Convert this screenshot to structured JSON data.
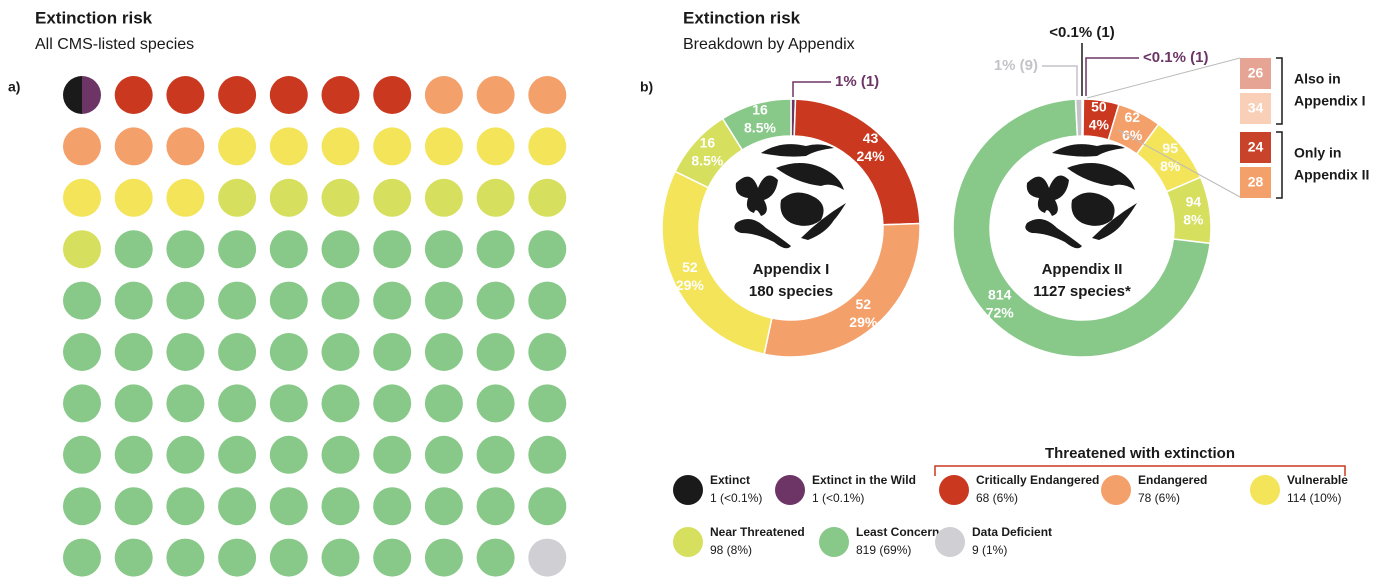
{
  "panel_a": {
    "title": "Extinction risk",
    "subtitle": "All CMS-listed species",
    "label": "a)",
    "waffle": [
      {
        "color": "#1a1a1a",
        "dots": 0.5
      },
      {
        "color": "#6d3566",
        "dots": 0.5
      },
      {
        "color": "#c9381f",
        "dots": 6
      },
      {
        "color": "#f4a06b",
        "dots": 6
      },
      {
        "color": "#f3e45a",
        "dots": 10
      },
      {
        "color": "#d6df5e",
        "dots": 8
      },
      {
        "color": "#88c98a",
        "dots": 68
      },
      {
        "color": "#cfcfd4",
        "dots": 1
      }
    ]
  },
  "panel_b": {
    "title": "Extinction risk",
    "subtitle": "Breakdown by Appendix",
    "label": "b)",
    "donuts": [
      {
        "name": [
          "Appendix I",
          "180 species"
        ],
        "segments": [
          {
            "value": 1,
            "label": "1% (1)",
            "color": "#6d3566"
          },
          {
            "value": 43,
            "label": "43",
            "pct": "24%",
            "color": "#c9381f"
          },
          {
            "value": 52,
            "label": "52",
            "pct": "29%",
            "color": "#f4a06b"
          },
          {
            "value": 52,
            "label": "52",
            "pct": "29%",
            "color": "#f3e45a"
          },
          {
            "value": 16,
            "label": "16",
            "pct": "8.5%",
            "color": "#d6df5e"
          },
          {
            "value": 16,
            "label": "16",
            "pct": "8.5%",
            "color": "#88c98a"
          }
        ]
      },
      {
        "name": [
          "Appendix II",
          "1127 species*"
        ],
        "segments": [
          {
            "value": 1,
            "label": "<0.1% (1)",
            "color": "#1a1a1a"
          },
          {
            "value": 1,
            "label": "<0.1% (1)",
            "color": "#6d3566"
          },
          {
            "value": 50,
            "label": "50",
            "pct": "4%",
            "color": "#c9381f"
          },
          {
            "value": 62,
            "label": "62",
            "pct": "6%",
            "color": "#f4a06b"
          },
          {
            "value": 95,
            "label": "95",
            "pct": "8%",
            "color": "#f3e45a"
          },
          {
            "value": 94,
            "label": "94",
            "pct": "8%",
            "color": "#d6df5e"
          },
          {
            "value": 814,
            "label": "814",
            "pct": "72%",
            "color": "#88c98a"
          },
          {
            "value": 9,
            "label": "1% (9)",
            "color": "#c4c4c8"
          }
        ]
      }
    ],
    "breakdown": [
      {
        "label": [
          "Also in",
          "Appendix I"
        ],
        "boxes": [
          {
            "value": 26,
            "color": "#e6a494"
          },
          {
            "value": 34,
            "color": "#f9cfb8"
          }
        ]
      },
      {
        "label": [
          "Only in",
          "Appendix II"
        ],
        "boxes": [
          {
            "value": 24,
            "color": "#c9432a"
          },
          {
            "value": 28,
            "color": "#f4a06b"
          }
        ]
      }
    ]
  },
  "legend": {
    "group_title": "Threatened with extinction",
    "items": [
      {
        "name": "Extinct",
        "count": "1 (<0.1%)",
        "color": "#1a1a1a"
      },
      {
        "name": "Extinct in the Wild",
        "count": "1 (<0.1%)",
        "color": "#6d3566"
      },
      {
        "name": "Critically Endangered",
        "count": "68 (6%)",
        "color": "#c9381f"
      },
      {
        "name": "Endangered",
        "count": "78 (6%)",
        "color": "#f4a06b"
      },
      {
        "name": "Vulnerable",
        "count": "114 (10%)",
        "color": "#f3e45a"
      },
      {
        "name": "Near Threatened",
        "count": "98 (8%)",
        "color": "#d6df5e"
      },
      {
        "name": "Least Concern",
        "count": "819 (69%)",
        "color": "#88c98a"
      },
      {
        "name": "Data Deficient",
        "count": "9 (1%)",
        "color": "#cfcfd4"
      }
    ]
  }
}
